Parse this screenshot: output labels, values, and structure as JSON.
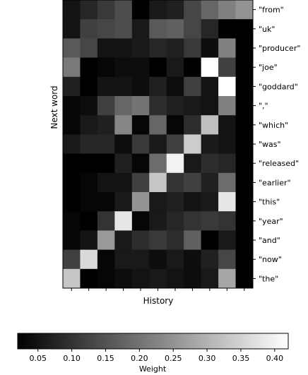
{
  "chart_data": {
    "type": "heatmap",
    "title": "",
    "xlabel": "History",
    "ylabel": "Next word",
    "x_categories": [
      "",
      "",
      "",
      "",
      "",
      "",
      "",
      "",
      "",
      "",
      ""
    ],
    "y_categories": [
      "\"from\"",
      "\"uk\"",
      "\"producer\"",
      "\"joe\"",
      "\"goddard\"",
      "\",\"",
      "\"which\"",
      "\"was\"",
      "\"released\"",
      "\"earlier\"",
      "\"this\"",
      "\"year\"",
      "\"and\"",
      "\"now\"",
      "\"the\""
    ],
    "values": [
      [
        0.05,
        0.08,
        0.11,
        0.14,
        0.02,
        0.06,
        0.07,
        0.13,
        0.18,
        0.22,
        0.25
      ],
      [
        0.05,
        0.12,
        0.13,
        0.14,
        0.06,
        0.16,
        0.17,
        0.13,
        0.08,
        0.02,
        0.0
      ],
      [
        0.16,
        0.13,
        0.05,
        0.05,
        0.06,
        0.08,
        0.07,
        0.11,
        0.04,
        0.22,
        0.0
      ],
      [
        0.21,
        0.02,
        0.03,
        0.04,
        0.04,
        0.02,
        0.06,
        0.02,
        0.42,
        0.12,
        0.0
      ],
      [
        0.07,
        0.02,
        0.05,
        0.05,
        0.04,
        0.07,
        0.04,
        0.12,
        0.05,
        0.43,
        0.0
      ],
      [
        0.03,
        0.04,
        0.12,
        0.18,
        0.2,
        0.09,
        0.07,
        0.06,
        0.05,
        0.22,
        0.0
      ],
      [
        0.03,
        0.06,
        0.07,
        0.23,
        0.03,
        0.18,
        0.03,
        0.09,
        0.32,
        0.05,
        0.0
      ],
      [
        0.06,
        0.08,
        0.08,
        0.04,
        0.11,
        0.06,
        0.12,
        0.34,
        0.06,
        0.05,
        0.0
      ],
      [
        0.02,
        0.02,
        0.02,
        0.07,
        0.03,
        0.19,
        0.4,
        0.06,
        0.09,
        0.08,
        0.0
      ],
      [
        0.02,
        0.03,
        0.05,
        0.05,
        0.12,
        0.33,
        0.1,
        0.12,
        0.07,
        0.19,
        0.0
      ],
      [
        0.02,
        0.03,
        0.03,
        0.06,
        0.25,
        0.06,
        0.07,
        0.05,
        0.06,
        0.38,
        0.0
      ],
      [
        0.03,
        0.02,
        0.1,
        0.38,
        0.03,
        0.06,
        0.08,
        0.1,
        0.11,
        0.1,
        0.0
      ],
      [
        0.03,
        0.05,
        0.26,
        0.06,
        0.09,
        0.11,
        0.09,
        0.17,
        0.02,
        0.06,
        0.0
      ],
      [
        0.12,
        0.36,
        0.03,
        0.06,
        0.06,
        0.04,
        0.06,
        0.04,
        0.07,
        0.13,
        0.0
      ],
      [
        0.33,
        0.01,
        0.03,
        0.04,
        0.05,
        0.06,
        0.05,
        0.04,
        0.06,
        0.28,
        0.0
      ]
    ],
    "colormap": "gray",
    "colorbar": {
      "label": "Weight",
      "range": [
        0.02,
        0.42
      ],
      "ticks": [
        0.05,
        0.1,
        0.15,
        0.2,
        0.25,
        0.3,
        0.35,
        0.4
      ],
      "tick_labels": [
        "0.05",
        "0.10",
        "0.15",
        "0.20",
        "0.25",
        "0.30",
        "0.35",
        "0.40"
      ]
    },
    "grid": false
  }
}
